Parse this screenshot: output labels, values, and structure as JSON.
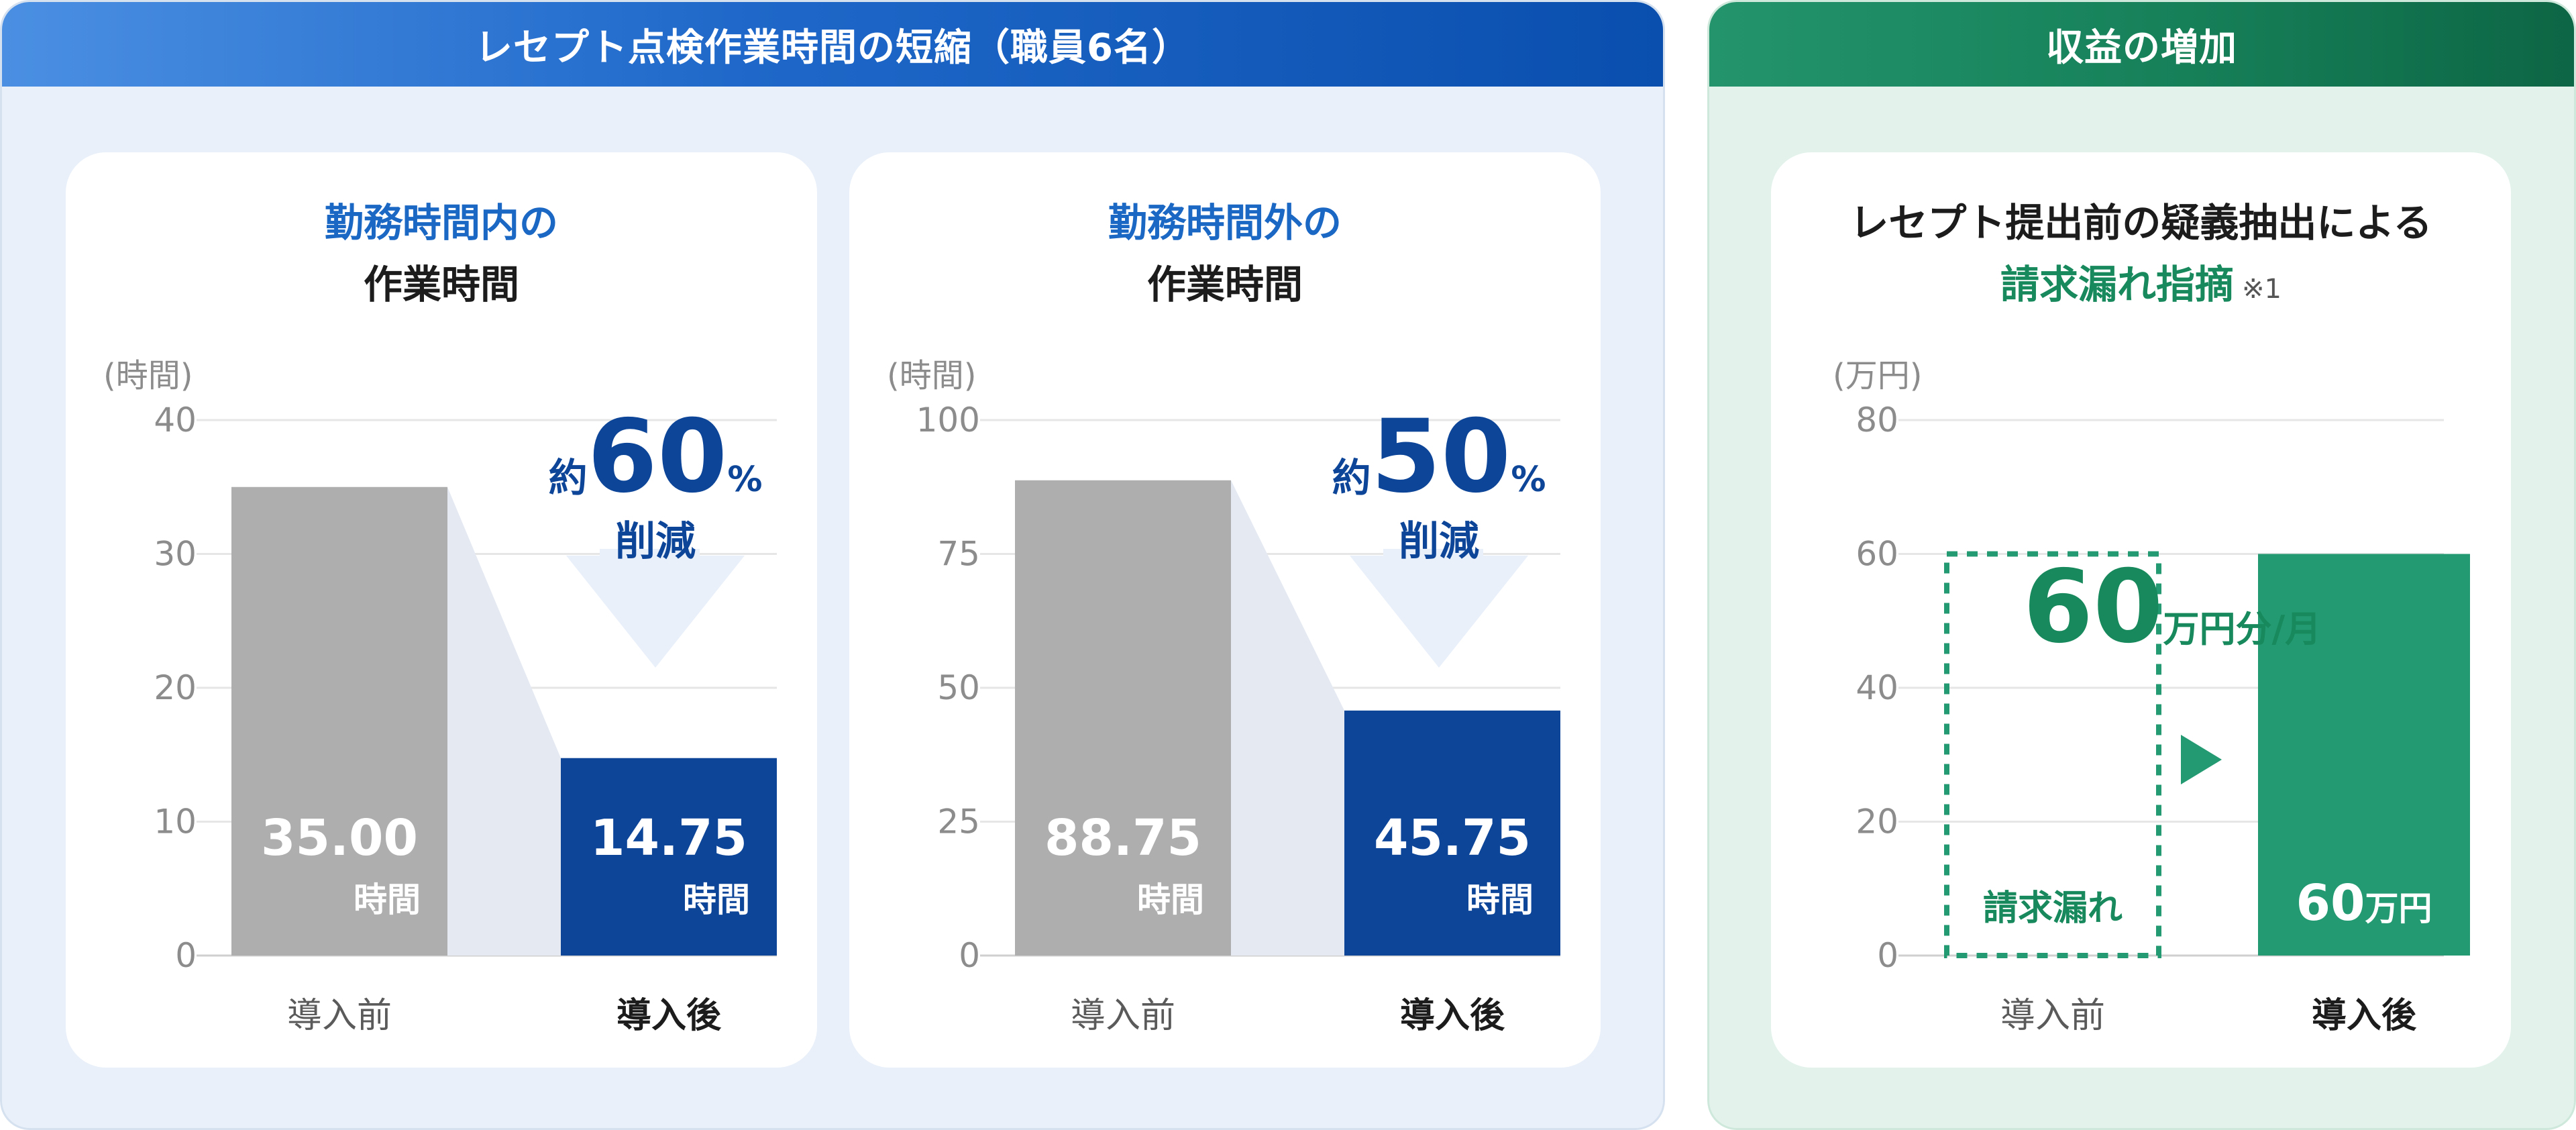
{
  "left_panel": {
    "banner": "レセプト点検作業時間の短縮（職員6名）",
    "cards": [
      {
        "title_line1": "勤務時間内の",
        "title_line2": "作業時間",
        "unit_label": "(時間)"
      },
      {
        "title_line1": "勤務時間外の",
        "title_line2": "作業時間",
        "unit_label": "(時間)"
      }
    ]
  },
  "right_panel": {
    "banner": "収益の増加",
    "title_line1": "レセプト提出前の疑義抽出による",
    "title_line2": "請求漏れ指摘",
    "note": "※1",
    "unit_label": "(万円)"
  },
  "colors": {
    "gray_bar": "#aeaeae",
    "navy_bar": "#0d4599",
    "green_bar": "#239a72",
    "arrow_bg": "#e9f0fa",
    "shade": "#e4e9f2",
    "dashed": "#239a72"
  },
  "chart_data": [
    {
      "type": "bar",
      "categories": [
        "導入前",
        "導入後"
      ],
      "values": [
        35.0,
        14.75
      ],
      "ylim": [
        0,
        40
      ],
      "ticks": [
        "0",
        "10",
        "20",
        "30",
        "40"
      ],
      "ylabel": "(時間)",
      "bar_labels": [
        "35.00",
        "14.75"
      ],
      "bar_units": [
        "時間",
        "時間"
      ],
      "callout": {
        "prefix": "約",
        "number": "60",
        "suffix": "%",
        "word": "削減"
      }
    },
    {
      "type": "bar",
      "categories": [
        "導入前",
        "導入後"
      ],
      "values": [
        88.75,
        45.75
      ],
      "ylim": [
        0,
        100
      ],
      "ticks": [
        "0",
        "25",
        "50",
        "75",
        "100"
      ],
      "ylabel": "(時間)",
      "bar_labels": [
        "88.75",
        "45.75"
      ],
      "bar_units": [
        "時間",
        "時間"
      ],
      "callout": {
        "prefix": "約",
        "number": "50",
        "suffix": "%",
        "word": "削減"
      }
    },
    {
      "type": "bar",
      "categories": [
        "導入前",
        "導入後"
      ],
      "values": [
        60,
        60
      ],
      "ylim": [
        0,
        80
      ],
      "ticks": [
        "0",
        "20",
        "40",
        "60",
        "80"
      ],
      "ylabel": "(万円)",
      "before_label": "請求漏れ",
      "after_number": "60",
      "after_unit": "万円",
      "callout": {
        "number": "60",
        "unit": "万円分/月"
      }
    }
  ]
}
